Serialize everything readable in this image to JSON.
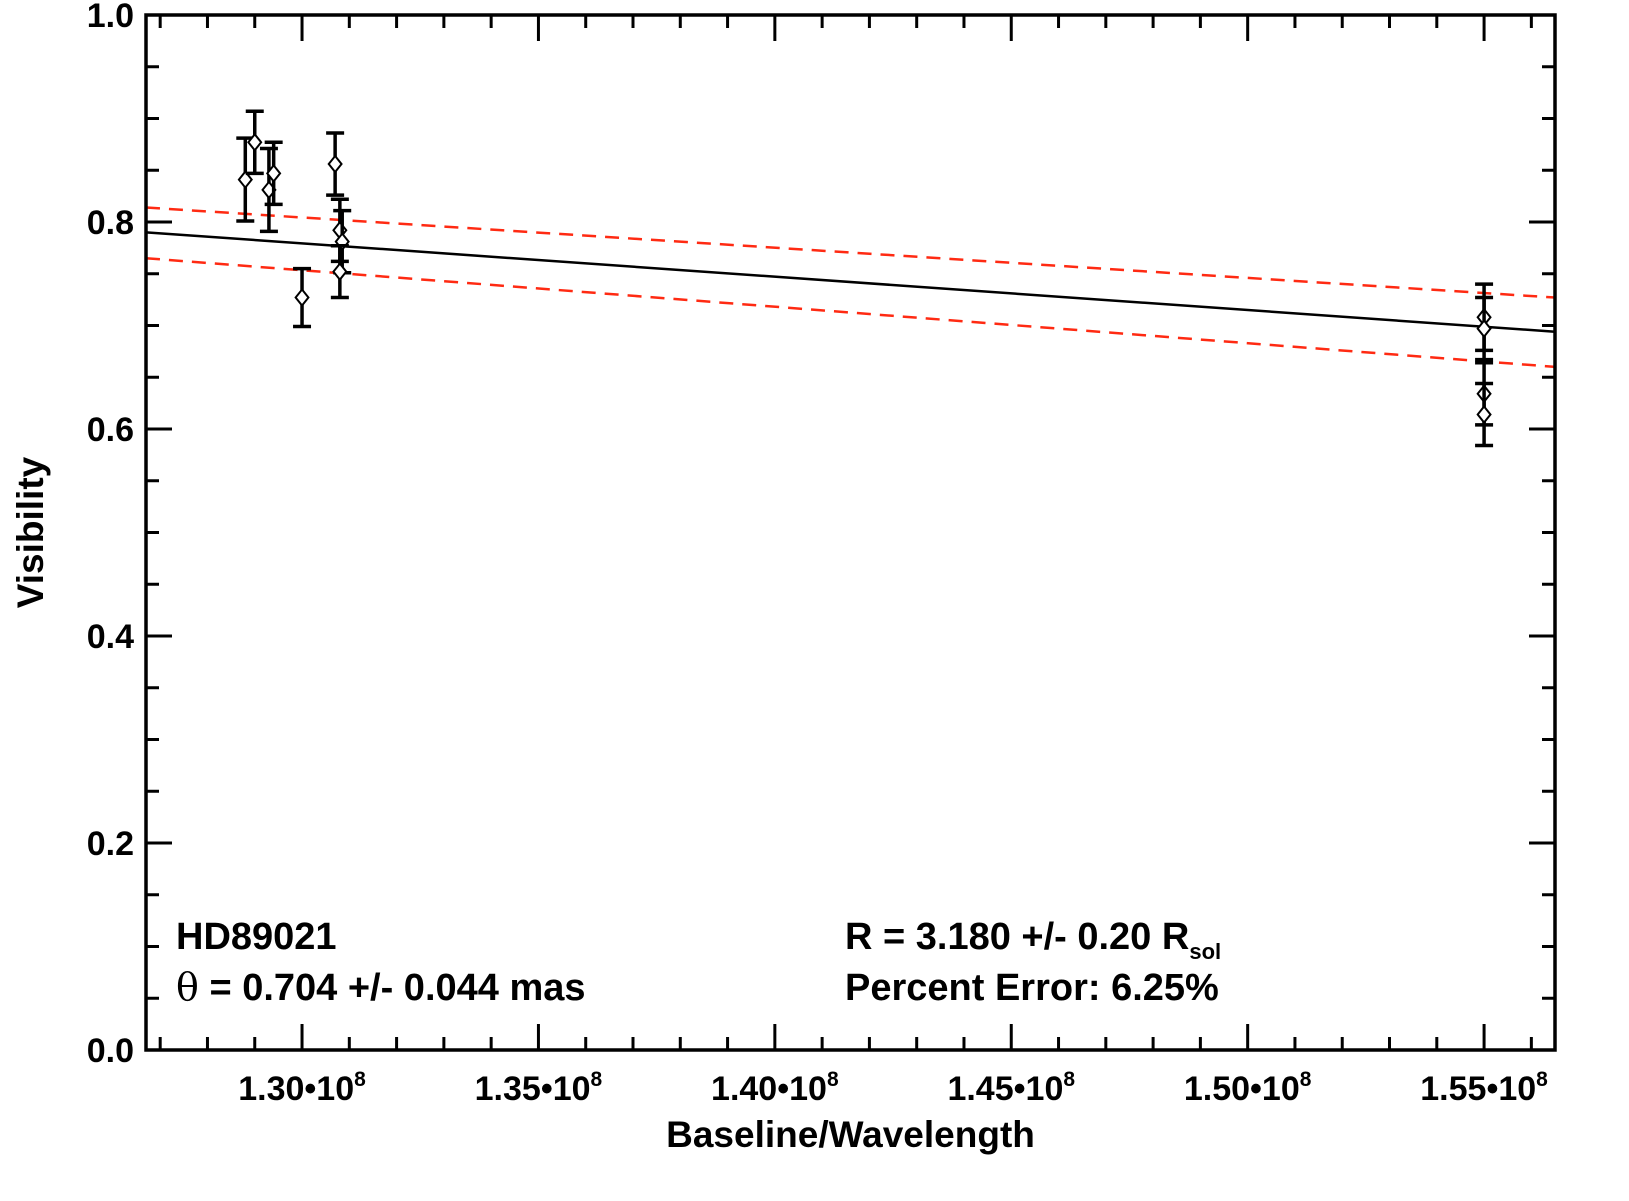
{
  "chart_data": {
    "type": "scatter",
    "xlabel": "Baseline/Wavelength",
    "ylabel": "Visibility",
    "xlim": [
      126700000,
      156500000
    ],
    "ylim": [
      0.0,
      1.0
    ],
    "x_ticks": [
      {
        "value": 130000000,
        "mantissa": "1.30",
        "dot": "•",
        "base": "10",
        "exp": "8"
      },
      {
        "value": 135000000,
        "mantissa": "1.35",
        "dot": "•",
        "base": "10",
        "exp": "8"
      },
      {
        "value": 140000000,
        "mantissa": "1.40",
        "dot": "•",
        "base": "10",
        "exp": "8"
      },
      {
        "value": 145000000,
        "mantissa": "1.45",
        "dot": "•",
        "base": "10",
        "exp": "8"
      },
      {
        "value": 150000000,
        "mantissa": "1.50",
        "dot": "•",
        "base": "10",
        "exp": "8"
      },
      {
        "value": 155000000,
        "mantissa": "1.55",
        "dot": "•",
        "base": "10",
        "exp": "8"
      }
    ],
    "y_ticks": [
      {
        "value": 0.0,
        "label": "0.0"
      },
      {
        "value": 0.2,
        "label": "0.2"
      },
      {
        "value": 0.4,
        "label": "0.4"
      },
      {
        "value": 0.6,
        "label": "0.6"
      },
      {
        "value": 0.8,
        "label": "0.8"
      },
      {
        "value": 1.0,
        "label": "1.0"
      }
    ],
    "series": [
      {
        "marker": "diamond",
        "color": "#000000",
        "points": [
          {
            "x": 128800000,
            "y": 0.841,
            "err": 0.04
          },
          {
            "x": 129000000,
            "y": 0.877,
            "err": 0.03
          },
          {
            "x": 129300000,
            "y": 0.831,
            "err": 0.04
          },
          {
            "x": 129400000,
            "y": 0.847,
            "err": 0.03
          },
          {
            "x": 130000000,
            "y": 0.727,
            "err": 0.028
          },
          {
            "x": 130700000,
            "y": 0.856,
            "err": 0.03
          },
          {
            "x": 130800000,
            "y": 0.792,
            "err": 0.03
          },
          {
            "x": 130850000,
            "y": 0.781,
            "err": 0.03
          },
          {
            "x": 130800000,
            "y": 0.752,
            "err": 0.025
          },
          {
            "x": 155000000,
            "y": 0.708,
            "err": 0.032
          },
          {
            "x": 155000000,
            "y": 0.697,
            "err": 0.03
          },
          {
            "x": 155000000,
            "y": 0.634,
            "err": 0.03
          },
          {
            "x": 155000000,
            "y": 0.614,
            "err": 0.03
          }
        ]
      }
    ],
    "fit_line": {
      "color": "#000000",
      "style": "solid",
      "points": [
        [
          126700000,
          0.79
        ],
        [
          156500000,
          0.694
        ]
      ]
    },
    "bound_lines": [
      {
        "color": "#ff2a12",
        "style": "dashed",
        "points": [
          [
            126700000,
            0.814
          ],
          [
            156500000,
            0.727
          ]
        ]
      },
      {
        "color": "#ff2a12",
        "style": "dashed",
        "points": [
          [
            126700000,
            0.765
          ],
          [
            156500000,
            0.66
          ]
        ]
      }
    ],
    "annotations": {
      "star": "HD89021",
      "theta_symbol": "θ",
      "theta_text": " = 0.704 +/- 0.044 mas",
      "radius_text": "R = 3.180 +/- 0.20 R",
      "radius_sub": "sol",
      "percent_error": "Percent Error: 6.25%"
    }
  }
}
